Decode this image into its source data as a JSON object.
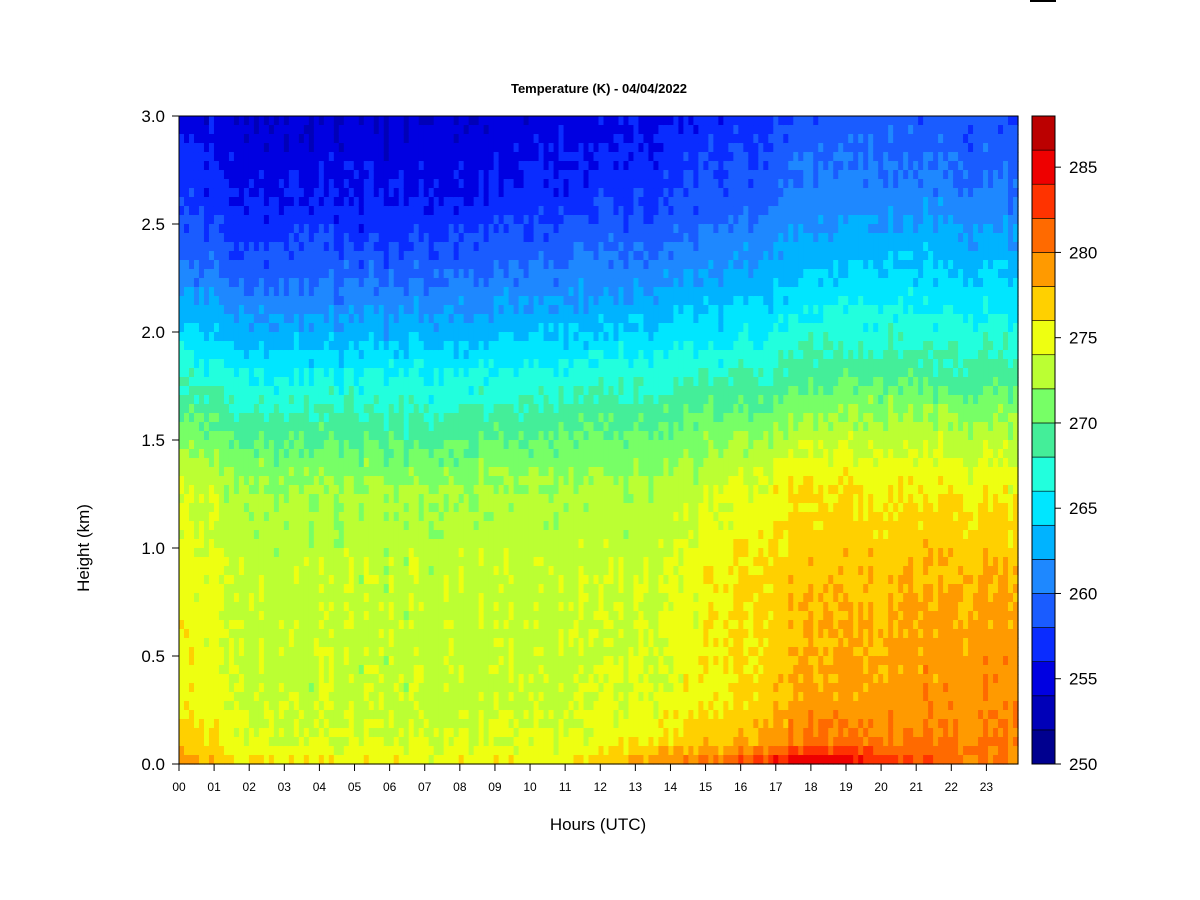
{
  "chart_data": {
    "type": "heatmap",
    "title": "Temperature (K) - 04/04/2022",
    "xlabel": "Hours (UTC)",
    "ylabel": "Height (km)",
    "x_ticks": [
      "00",
      "01",
      "02",
      "03",
      "04",
      "05",
      "06",
      "07",
      "08",
      "09",
      "10",
      "11",
      "12",
      "13",
      "14",
      "15",
      "16",
      "17",
      "18",
      "19",
      "20",
      "21",
      "22",
      "23"
    ],
    "xlim": [
      0,
      23.9
    ],
    "ylim": [
      0.0,
      3.0
    ],
    "y_ticks": [
      0.0,
      0.5,
      1.0,
      1.5,
      2.0,
      2.5,
      3.0
    ],
    "y_tick_labels": [
      "0.0",
      "0.5",
      "1.0",
      "1.5",
      "2.0",
      "2.5",
      "3.0"
    ],
    "colorbar": {
      "levels": [
        250,
        252,
        254,
        256,
        258,
        260,
        262,
        264,
        266,
        268,
        270,
        272,
        274,
        276,
        278,
        280,
        282,
        284,
        286,
        288
      ],
      "colors": [
        "#00008f",
        "#0000b8",
        "#0000e1",
        "#0a2cff",
        "#1a5cff",
        "#1e88ff",
        "#00b3ff",
        "#00e6ff",
        "#22ffdd",
        "#44ee99",
        "#77ff66",
        "#bbff33",
        "#eeff11",
        "#ffd000",
        "#ff9a00",
        "#ff6a00",
        "#ff3300",
        "#ee0000",
        "#bb0000",
        "#800000"
      ],
      "tick_values": [
        250,
        255,
        260,
        265,
        270,
        275,
        280,
        285
      ],
      "tick_labels": [
        "250",
        "255",
        "260",
        "265",
        "270",
        "275",
        "280",
        "285"
      ]
    },
    "profiles": [
      {
        "hour": 0,
        "temps": [
          [
            0.0,
            279
          ],
          [
            0.1,
            277
          ],
          [
            0.3,
            275.5
          ],
          [
            0.9,
            275
          ],
          [
            1.3,
            273.5
          ],
          [
            1.6,
            270
          ],
          [
            1.8,
            267
          ],
          [
            2.0,
            264.5
          ],
          [
            2.3,
            260
          ],
          [
            2.6,
            257.5
          ],
          [
            3.0,
            255
          ]
        ]
      },
      {
        "hour": 3,
        "temps": [
          [
            0.0,
            276
          ],
          [
            0.1,
            274
          ],
          [
            0.3,
            273.3
          ],
          [
            0.9,
            273.3
          ],
          [
            1.3,
            272
          ],
          [
            1.6,
            268.5
          ],
          [
            1.8,
            266
          ],
          [
            2.0,
            262.5
          ],
          [
            2.3,
            259
          ],
          [
            2.6,
            256
          ],
          [
            3.0,
            254
          ]
        ]
      },
      {
        "hour": 7,
        "temps": [
          [
            0.0,
            275.5
          ],
          [
            0.1,
            274
          ],
          [
            0.3,
            273.3
          ],
          [
            0.9,
            273.2
          ],
          [
            1.3,
            272
          ],
          [
            1.6,
            268
          ],
          [
            1.8,
            266
          ],
          [
            2.0,
            263
          ],
          [
            2.3,
            259
          ],
          [
            2.6,
            256
          ],
          [
            3.0,
            254
          ]
        ]
      },
      {
        "hour": 11,
        "temps": [
          [
            0.0,
            275.5
          ],
          [
            0.1,
            274
          ],
          [
            0.3,
            273.4
          ],
          [
            0.9,
            273.2
          ],
          [
            1.3,
            272
          ],
          [
            1.6,
            269
          ],
          [
            1.8,
            266.5
          ],
          [
            2.0,
            263.5
          ],
          [
            2.3,
            260
          ],
          [
            2.6,
            257
          ],
          [
            3.0,
            254.5
          ]
        ]
      },
      {
        "hour": 14,
        "temps": [
          [
            0.0,
            280
          ],
          [
            0.1,
            276.5
          ],
          [
            0.3,
            274.5
          ],
          [
            0.9,
            274
          ],
          [
            1.3,
            272.5
          ],
          [
            1.6,
            269.5
          ],
          [
            1.8,
            267.5
          ],
          [
            2.0,
            264.5
          ],
          [
            2.3,
            261
          ],
          [
            2.6,
            258
          ],
          [
            3.0,
            256
          ]
        ]
      },
      {
        "hour": 16,
        "temps": [
          [
            0.0,
            282
          ],
          [
            0.1,
            278
          ],
          [
            0.3,
            276
          ],
          [
            0.9,
            276
          ],
          [
            1.3,
            274
          ],
          [
            1.6,
            270.5
          ],
          [
            1.8,
            268
          ],
          [
            2.0,
            265.5
          ],
          [
            2.3,
            262
          ],
          [
            2.6,
            259
          ],
          [
            3.0,
            257
          ]
        ]
      },
      {
        "hour": 18,
        "temps": [
          [
            0.0,
            286
          ],
          [
            0.1,
            281
          ],
          [
            0.3,
            278.5
          ],
          [
            0.9,
            277.5
          ],
          [
            1.3,
            276
          ],
          [
            1.6,
            272
          ],
          [
            1.8,
            269
          ],
          [
            2.0,
            267
          ],
          [
            2.3,
            263.5
          ],
          [
            2.6,
            261
          ],
          [
            3.0,
            258.5
          ]
        ]
      },
      {
        "hour": 20,
        "temps": [
          [
            0.0,
            284
          ],
          [
            0.1,
            280
          ],
          [
            0.3,
            278.5
          ],
          [
            0.9,
            277.5
          ],
          [
            1.3,
            275.5
          ],
          [
            1.6,
            272
          ],
          [
            1.8,
            269.5
          ],
          [
            2.0,
            267
          ],
          [
            2.3,
            264
          ],
          [
            2.6,
            261
          ],
          [
            3.0,
            258.5
          ]
        ]
      },
      {
        "hour": 22,
        "temps": [
          [
            0.0,
            281
          ],
          [
            0.1,
            280
          ],
          [
            0.3,
            279.5
          ],
          [
            0.9,
            278
          ],
          [
            1.3,
            275.5
          ],
          [
            1.6,
            272
          ],
          [
            1.8,
            269
          ],
          [
            2.0,
            267
          ],
          [
            2.3,
            264
          ],
          [
            2.6,
            261
          ],
          [
            3.0,
            258.5
          ]
        ]
      },
      {
        "hour": 24,
        "temps": [
          [
            0.0,
            280
          ],
          [
            0.1,
            280
          ],
          [
            0.3,
            279.5
          ],
          [
            0.9,
            278
          ],
          [
            1.3,
            275
          ],
          [
            1.6,
            272
          ],
          [
            1.8,
            269
          ],
          [
            2.0,
            266.5
          ],
          [
            2.3,
            263.5
          ],
          [
            2.6,
            260.5
          ],
          [
            3.0,
            258
          ]
        ]
      }
    ],
    "grid": false,
    "legend": "colorbar-right"
  }
}
